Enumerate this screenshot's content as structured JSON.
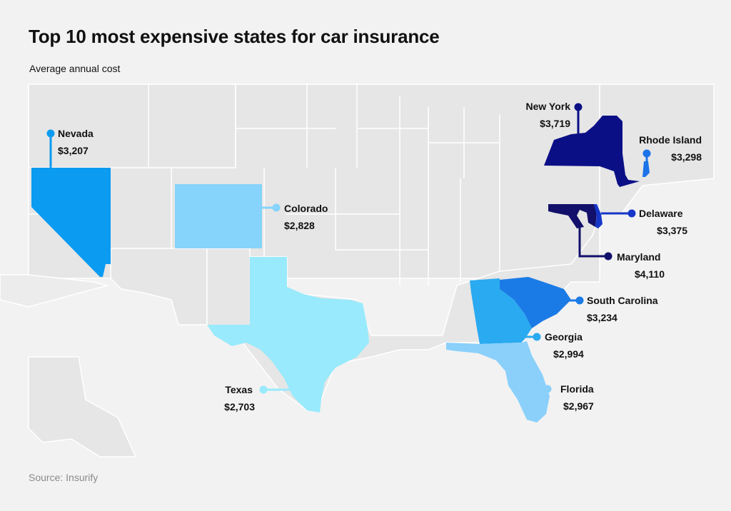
{
  "title": "Top 10 most expensive states for car insurance",
  "subtitle": "Average annual cost",
  "source": "Source: Insurify",
  "colors": {
    "background": "#f2f2f2",
    "land": "#e6e6e6",
    "borders": "#ffffff"
  },
  "states": [
    {
      "key": "nevada",
      "name": "Nevada",
      "value": "$3,207",
      "color": "#0b9bf0"
    },
    {
      "key": "colorado",
      "name": "Colorado",
      "value": "$2,828",
      "color": "#86d3fb"
    },
    {
      "key": "texas",
      "name": "Texas",
      "value": "$2,703",
      "color": "#98eafc"
    },
    {
      "key": "new-york",
      "name": "New York",
      "value": "$3,719",
      "color": "#0b0f86"
    },
    {
      "key": "rhode-island",
      "name": "Rhode Island",
      "value": "$3,298",
      "color": "#1c73e8"
    },
    {
      "key": "delaware",
      "name": "Delaware",
      "value": "$3,375",
      "color": "#1536c8"
    },
    {
      "key": "maryland",
      "name": "Maryland",
      "value": "$4,110",
      "color": "#12106a"
    },
    {
      "key": "south-carolina",
      "name": "South Carolina",
      "value": "$3,234",
      "color": "#1b7be6"
    },
    {
      "key": "georgia",
      "name": "Georgia",
      "value": "$2,994",
      "color": "#2aaaf0"
    },
    {
      "key": "florida",
      "name": "Florida",
      "value": "$2,967",
      "color": "#8ad0fb"
    }
  ]
}
